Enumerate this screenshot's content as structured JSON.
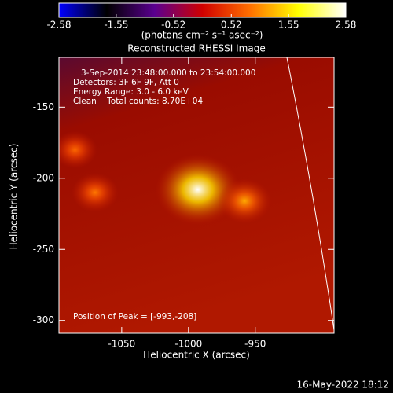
{
  "chart_data": {
    "type": "heatmap",
    "title": "Reconstructed RHESSI Image",
    "colorbar": {
      "label": "(photons cm⁻² s⁻¹ asec⁻²)",
      "lim": [
        -2.58,
        2.58
      ],
      "ticks": [
        -2.58,
        -1.55,
        -0.52,
        0.52,
        1.55,
        2.58
      ],
      "colors": [
        "#0000ff",
        "#000000",
        "#5a0090",
        "#d00000",
        "#ff7000",
        "#ffff00",
        "#ffffff"
      ]
    },
    "annotations": [
      "3-Sep-2014 23:48:00.000 to 23:54:00.000",
      "Detectors: 3F 6F 9F, Att 0",
      "Energy Range: 3.0 - 6.0 keV",
      "Clean    Total counts: 8.70E+04"
    ],
    "peak_label": "Position of Peak = [-993,-208]",
    "x_label": "Heliocentric X (arcsec)",
    "y_label": "Heliocentric Y (arcsec)",
    "xlim": [
      -1097,
      -891
    ],
    "ylim": [
      -309,
      -115
    ],
    "xticks": [
      -1050,
      -1000,
      -950
    ],
    "yticks": [
      -150,
      -200,
      -250,
      -300
    ],
    "sources": {
      "x": [
        -993,
        -958,
        -1070,
        -1085
      ],
      "y": [
        -208,
        -216,
        -210,
        -180
      ],
      "values": [
        2.58,
        1.2,
        0.9,
        0.8
      ]
    },
    "timestamp": "16-May-2022 18:12"
  }
}
